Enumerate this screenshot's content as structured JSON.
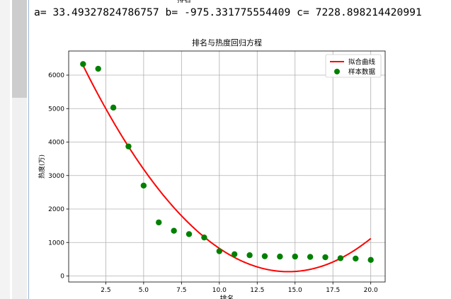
{
  "output": {
    "result_text": "a= 33.49327824786757 b= -975.331775554409 c= 7228.898214420991",
    "cut_off_title": "排名"
  },
  "chart_data": {
    "type": "scatter",
    "title": "排名与热度回归方程",
    "xlabel": "排名",
    "ylabel": "热度(万)",
    "xlim": [
      0.05,
      20.95
    ],
    "ylim": [
      -180,
      6720
    ],
    "x_ticks": [
      2.5,
      5.0,
      7.5,
      10.0,
      12.5,
      15.0,
      17.5,
      20.0
    ],
    "x_tick_labels": [
      "2.5",
      "5.0",
      "7.5",
      "10.0",
      "12.5",
      "15.0",
      "17.5",
      "20.0"
    ],
    "y_ticks": [
      0,
      1000,
      2000,
      3000,
      4000,
      5000,
      6000
    ],
    "y_tick_labels": [
      "0",
      "1000",
      "2000",
      "3000",
      "4000",
      "5000",
      "6000"
    ],
    "grid": true,
    "legend_position": "top-right",
    "colors": {
      "fit": "#ff0000",
      "samples": "#008000"
    },
    "series": [
      {
        "name": "拟合曲线",
        "kind": "line",
        "coefficients": {
          "a": 33.49327824786757,
          "b": -975.331775554409,
          "c": 7228.898214420991
        },
        "x": [
          1,
          2,
          3,
          4,
          5,
          6,
          7,
          8,
          9,
          10,
          11,
          12,
          13,
          14,
          15,
          16,
          17,
          18,
          19,
          20
        ]
      },
      {
        "name": "样本数据",
        "kind": "scatter",
        "x": [
          1,
          2,
          3,
          4,
          5,
          6,
          7,
          8,
          9,
          10,
          11,
          12,
          13,
          14,
          15,
          16,
          17,
          18,
          19,
          20
        ],
        "y": [
          6330,
          6190,
          5030,
          3870,
          2700,
          1600,
          1350,
          1250,
          1150,
          740,
          650,
          620,
          590,
          580,
          580,
          570,
          560,
          530,
          520,
          480
        ]
      }
    ]
  }
}
